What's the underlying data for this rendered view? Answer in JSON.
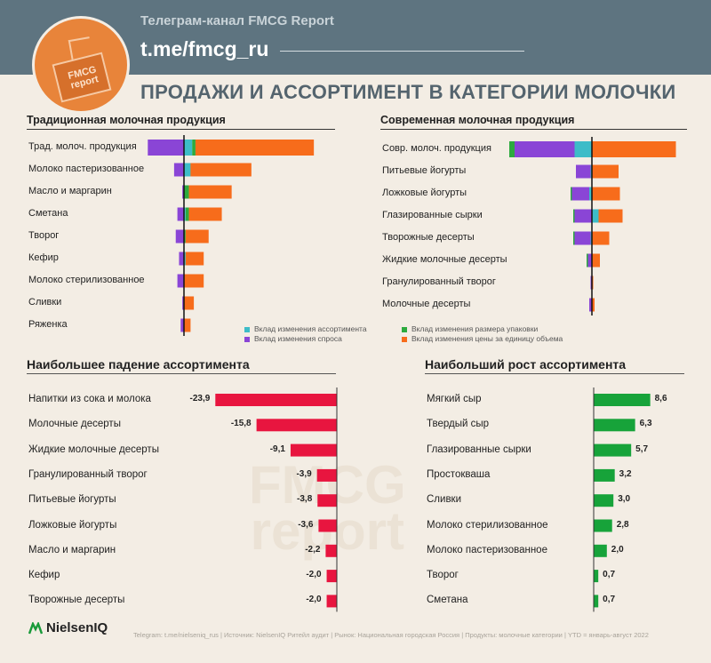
{
  "header": {
    "channel_title": "Телеграм-канал FMCG Report",
    "channel_link": "t.me/fmcg_ru",
    "logo_text_1": "FMCG",
    "logo_text_2": "report"
  },
  "main_title": "ПРОДАЖИ И АССОРТИМЕНТ В КАТЕГОРИИ МОЛОЧКИ",
  "legend": {
    "assortment": "Вклад изменения ассортимента",
    "demand": "Вклад изменения спроса",
    "pack_size": "Вклад изменения размера упаковки",
    "unit_price": "Вклад изменения цены за единицу объема"
  },
  "colors": {
    "assortment": "#3dbcc8",
    "demand": "#8a45d6",
    "pack_size": "#2daa3e",
    "unit_price": "#f76c1b",
    "decline": "#e8153f",
    "growth": "#17a33a",
    "header_bg": "#5e7480",
    "logo": "#e8843a",
    "title": "#54646e"
  },
  "chart_data": [
    {
      "type": "bar",
      "title": "Традиционная молочная продукция",
      "orientation": "horizontal-stacked-diverging",
      "categories": [
        "Трад. молоч. продукция",
        "Молоко пастеризованное",
        "Масло и маргарин",
        "Сметана",
        "Творог",
        "Кефир",
        "Молоко стерилизованное",
        "Сливки",
        "Ряженка"
      ],
      "series": [
        {
          "name": "Вклад изменения ассортимента",
          "values": [
            5,
            4,
            0,
            1,
            0,
            1,
            0,
            0,
            0
          ]
        },
        {
          "name": "Вклад изменения спроса",
          "values": [
            -22,
            -6,
            -1,
            -4,
            -5,
            -3,
            -4,
            -1,
            -2
          ]
        },
        {
          "name": "Вклад изменения размера упаковки",
          "values": [
            2,
            0,
            3,
            2,
            1,
            0,
            0,
            0,
            0
          ]
        },
        {
          "name": "Вклад изменения цены за единицу объема",
          "values": [
            72,
            37,
            26,
            20,
            14,
            11,
            12,
            6,
            4
          ]
        }
      ]
    },
    {
      "type": "bar",
      "title": "Современная молочная продукция",
      "orientation": "horizontal-stacked-diverging",
      "categories": [
        "Совр. молоч. продукция",
        "Питьевые йогурты",
        "Ложковые йогурты",
        "Глазированные сырки",
        "Творожные десерты",
        "Жидкие молочные десерты",
        "Гранулированный творог",
        "Молочные десерты"
      ],
      "series": [
        {
          "name": "Вклад изменения ассортимента",
          "values": [
            -13,
            -1,
            -2,
            5,
            -1,
            0,
            0,
            0
          ]
        },
        {
          "name": "Вклад изменения спроса",
          "values": [
            -45,
            -11,
            -13,
            -13,
            -12,
            -3,
            -1,
            -2
          ]
        },
        {
          "name": "Вклад изменения размера упаковки",
          "values": [
            -4,
            0,
            -1,
            -1,
            -1,
            -1,
            0,
            0
          ]
        },
        {
          "name": "Вклад изменения цены за единицу объема",
          "values": [
            63,
            20,
            21,
            18,
            13,
            6,
            1,
            2
          ]
        }
      ]
    },
    {
      "type": "bar",
      "title": "Наибольшее падение ассортимента",
      "orientation": "horizontal",
      "categories": [
        "Напитки из сока и молока",
        "Молочные десерты",
        "Жидкие молочные десерты",
        "Гранулированный творог",
        "Питьевые йогурты",
        "Ложковые йогурты",
        "Масло и маргарин",
        "Кефир",
        "Творожные десерты"
      ],
      "values": [
        -23.9,
        -15.8,
        -9.1,
        -3.9,
        -3.8,
        -3.6,
        -2.2,
        -2.0,
        -2.0
      ],
      "labels": [
        "-23,9",
        "-15,8",
        "-9,1",
        "-3,9",
        "-3,8",
        "-3,6",
        "-2,2",
        "-2,0",
        "-2,0"
      ]
    },
    {
      "type": "bar",
      "title": "Наибольший рост ассортимента",
      "orientation": "horizontal",
      "categories": [
        "Мягкий сыр",
        "Твердый сыр",
        "Глазированные сырки",
        "Простокваша",
        "Сливки",
        "Молоко стерилизованное",
        "Молоко пастеризованное",
        "Творог",
        "Сметана"
      ],
      "values": [
        8.6,
        6.3,
        5.7,
        3.2,
        3.0,
        2.8,
        2.0,
        0.7,
        0.7
      ],
      "labels": [
        "8,6",
        "6,3",
        "5,7",
        "3,2",
        "3,0",
        "2,8",
        "2,0",
        "0,7",
        "0,7"
      ]
    }
  ],
  "footer": {
    "brand": "NielsenIQ",
    "note": "Telegram: t.me/nielseniq_rus  |  Источник: NielsenIQ Ритейл аудит  |  Рынок: Национальная городская Россия  |  Продукты: молочные категории  |  YTD = январь-август 2022"
  }
}
